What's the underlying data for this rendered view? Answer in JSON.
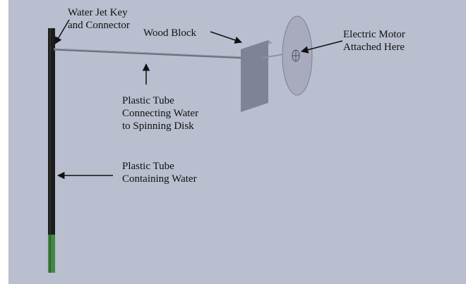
{
  "colors": {
    "background": "#b9bfcf",
    "tube_dark": "#1c1c1c",
    "tube_water": "#3f8a3f",
    "wood_block": "#7f8396",
    "disk": "#a7abbd",
    "arrow": "#111111"
  },
  "labels": {
    "water_jet": [
      "Water Jet Key",
      "and Connector"
    ],
    "wood_block": [
      "Wood Block"
    ],
    "electric_motor": [
      "Electric Motor",
      "Attached Here"
    ],
    "tube_connecting": [
      "Plastic Tube",
      "Connecting Water",
      "to Spinning Disk"
    ],
    "tube_containing": [
      "Plastic Tube",
      "Containing Water"
    ]
  }
}
